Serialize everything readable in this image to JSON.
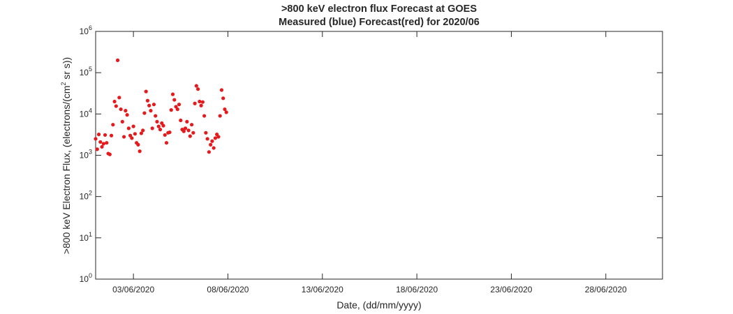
{
  "chart_data": {
    "type": "scatter",
    "title": ">800 keV electron flux Forecast at GOES",
    "subtitle": "Measured (blue) Forecast(red) for 2020/06",
    "xlabel": "Date, (dd/mm/yyyy)",
    "ylabel": ">800 keV Electron Flux, (electrons/(cm² sr s))",
    "ylabel_parts": {
      "before": ">800 keV Electron Flux, (electrons/(cm",
      "sup": "2",
      "after": " sr s))"
    },
    "y_scale": "log",
    "ylim": [
      1,
      1000000
    ],
    "y_tick_base": "10",
    "y_tick_exponents": [
      "0",
      "1",
      "2",
      "3",
      "4",
      "5",
      "6"
    ],
    "xlim": [
      "2020-06-01",
      "2020-07-01"
    ],
    "x_ticks": [
      "2020-06-03",
      "2020-06-08",
      "2020-06-13",
      "2020-06-18",
      "2020-06-23",
      "2020-06-28"
    ],
    "x_tick_labels": [
      "03/06/2020",
      "08/06/2020",
      "13/06/2020",
      "18/06/2020",
      "23/06/2020",
      "28/06/2020"
    ],
    "grid": false,
    "series": [
      {
        "color": "#e41a1c",
        "marker": "dot",
        "points": [
          [
            "2020-06-01 00:00",
            2500
          ],
          [
            "2020-06-01 02:00",
            1400
          ],
          [
            "2020-06-01 04:00",
            3200
          ],
          [
            "2020-06-01 06:00",
            2100
          ],
          [
            "2020-06-01 08:00",
            1600
          ],
          [
            "2020-06-01 10:00",
            1900
          ],
          [
            "2020-06-01 12:00",
            3100
          ],
          [
            "2020-06-01 14:00",
            2000
          ],
          [
            "2020-06-01 16:00",
            1100
          ],
          [
            "2020-06-01 18:00",
            1050
          ],
          [
            "2020-06-01 20:00",
            3000
          ],
          [
            "2020-06-01 22:00",
            5500
          ],
          [
            "2020-06-02 00:00",
            20000
          ],
          [
            "2020-06-02 02:00",
            15500
          ],
          [
            "2020-06-02 04:00",
            200000
          ],
          [
            "2020-06-02 06:00",
            25000
          ],
          [
            "2020-06-02 08:00",
            13000
          ],
          [
            "2020-06-02 10:00",
            6500
          ],
          [
            "2020-06-02 12:00",
            2800
          ],
          [
            "2020-06-02 14:00",
            12000
          ],
          [
            "2020-06-02 16:00",
            9500
          ],
          [
            "2020-06-02 18:00",
            4500
          ],
          [
            "2020-06-02 20:00",
            3000
          ],
          [
            "2020-06-02 22:00",
            2600
          ],
          [
            "2020-06-03 00:00",
            5000
          ],
          [
            "2020-06-03 02:00",
            3300
          ],
          [
            "2020-06-03 04:00",
            2000
          ],
          [
            "2020-06-03 06:00",
            1800
          ],
          [
            "2020-06-03 08:00",
            1250
          ],
          [
            "2020-06-03 10:00",
            3400
          ],
          [
            "2020-06-03 12:00",
            4000
          ],
          [
            "2020-06-03 14:00",
            10500
          ],
          [
            "2020-06-03 16:00",
            35000
          ],
          [
            "2020-06-03 18:00",
            21000
          ],
          [
            "2020-06-03 20:00",
            16000
          ],
          [
            "2020-06-03 22:00",
            12000
          ],
          [
            "2020-06-04 00:00",
            4500
          ],
          [
            "2020-06-04 02:00",
            17000
          ],
          [
            "2020-06-04 04:00",
            9000
          ],
          [
            "2020-06-04 06:00",
            6500
          ],
          [
            "2020-06-04 08:00",
            5000
          ],
          [
            "2020-06-04 10:00",
            4200
          ],
          [
            "2020-06-04 12:00",
            6000
          ],
          [
            "2020-06-04 14:00",
            5200
          ],
          [
            "2020-06-04 16:00",
            3100
          ],
          [
            "2020-06-04 18:00",
            2000
          ],
          [
            "2020-06-04 20:00",
            3500
          ],
          [
            "2020-06-04 22:00",
            3600
          ],
          [
            "2020-06-05 00:00",
            12500
          ],
          [
            "2020-06-05 02:00",
            30000
          ],
          [
            "2020-06-05 04:00",
            22000
          ],
          [
            "2020-06-05 06:00",
            15000
          ],
          [
            "2020-06-05 08:00",
            13000
          ],
          [
            "2020-06-05 10:00",
            17000
          ],
          [
            "2020-06-05 12:00",
            7000
          ],
          [
            "2020-06-05 14:00",
            4200
          ],
          [
            "2020-06-05 16:00",
            3800
          ],
          [
            "2020-06-05 18:00",
            4500
          ],
          [
            "2020-06-05 20:00",
            6500
          ],
          [
            "2020-06-05 22:00",
            4000
          ],
          [
            "2020-06-06 00:00",
            2900
          ],
          [
            "2020-06-06 02:00",
            5500
          ],
          [
            "2020-06-06 04:00",
            3500
          ],
          [
            "2020-06-06 06:00",
            18000
          ],
          [
            "2020-06-06 08:00",
            48000
          ],
          [
            "2020-06-06 10:00",
            40000
          ],
          [
            "2020-06-06 12:00",
            20000
          ],
          [
            "2020-06-06 14:00",
            16000
          ],
          [
            "2020-06-06 16:00",
            19500
          ],
          [
            "2020-06-06 18:00",
            9000
          ],
          [
            "2020-06-06 20:00",
            3500
          ],
          [
            "2020-06-06 22:00",
            2500
          ],
          [
            "2020-06-07 00:00",
            1200
          ],
          [
            "2020-06-07 02:00",
            1800
          ],
          [
            "2020-06-07 04:00",
            2200
          ],
          [
            "2020-06-07 06:00",
            1500
          ],
          [
            "2020-06-07 08:00",
            2600
          ],
          [
            "2020-06-07 10:00",
            3200
          ],
          [
            "2020-06-07 12:00",
            2800
          ],
          [
            "2020-06-07 14:00",
            9000
          ],
          [
            "2020-06-07 16:00",
            38000
          ],
          [
            "2020-06-07 18:00",
            24000
          ],
          [
            "2020-06-07 20:00",
            13000
          ],
          [
            "2020-06-07 22:00",
            11000
          ]
        ]
      }
    ]
  }
}
